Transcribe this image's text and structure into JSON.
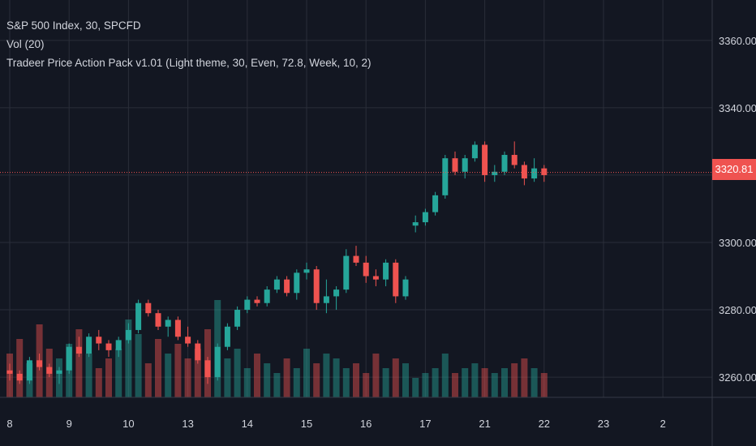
{
  "legend": {
    "line1": "S&P 500 Index, 30, SPCFD",
    "line2": "Vol (20)",
    "line3": "Tradeer Price Action Pack v1.01 (Light theme, 30, Even, 72.8, Week, 10, 2)"
  },
  "colors": {
    "background": "#131722",
    "grid": "#2a2e39",
    "up": "#26a69a",
    "down": "#ef5350",
    "text": "#d1d4dc",
    "price_line": "#ef5350"
  },
  "chart_data": {
    "type": "candlestick",
    "symbol": "S&P 500 Index",
    "interval": "30",
    "source": "SPCFD",
    "last_price": "3320.81",
    "y_ticks": [
      "3360.00",
      "3340.00",
      "3320.00",
      "3300.00",
      "3280.00",
      "3260.00"
    ],
    "y_tick_values": [
      3360,
      3340,
      3320,
      3300,
      3280,
      3260
    ],
    "ylim": [
      3254,
      3372
    ],
    "x_ticks": [
      "8",
      "9",
      "10",
      "13",
      "14",
      "15",
      "16",
      "17",
      "21",
      "22",
      "23",
      "2"
    ],
    "x_tick_index": [
      0,
      6,
      12,
      18,
      24,
      30,
      36,
      42,
      48,
      54,
      60,
      66
    ],
    "ohlc": [
      [
        3262,
        3264,
        3259,
        3261
      ],
      [
        3261,
        3262,
        3258,
        3259
      ],
      [
        3259,
        3266,
        3258,
        3265
      ],
      [
        3265,
        3267,
        3262,
        3263
      ],
      [
        3263,
        3264,
        3260,
        3261
      ],
      [
        3261,
        3263,
        3258,
        3262
      ],
      [
        3262,
        3270,
        3261,
        3269
      ],
      [
        3269,
        3272,
        3266,
        3267
      ],
      [
        3267,
        3273,
        3266,
        3272
      ],
      [
        3272,
        3274,
        3268,
        3270
      ],
      [
        3270,
        3271,
        3266,
        3268
      ],
      [
        3268,
        3272,
        3266,
        3271
      ],
      [
        3271,
        3276,
        3270,
        3274
      ],
      [
        3274,
        3283,
        3273,
        3282
      ],
      [
        3282,
        3283,
        3278,
        3279
      ],
      [
        3279,
        3280,
        3274,
        3275
      ],
      [
        3275,
        3278,
        3272,
        3277
      ],
      [
        3277,
        3278,
        3271,
        3272
      ],
      [
        3272,
        3275,
        3269,
        3270
      ],
      [
        3270,
        3271,
        3264,
        3265
      ],
      [
        3265,
        3266,
        3258,
        3260
      ],
      [
        3260,
        3270,
        3259,
        3269
      ],
      [
        3269,
        3276,
        3268,
        3275
      ],
      [
        3275,
        3281,
        3274,
        3280
      ],
      [
        3280,
        3284,
        3279,
        3283
      ],
      [
        3283,
        3284,
        3281,
        3282
      ],
      [
        3282,
        3287,
        3281,
        3286
      ],
      [
        3286,
        3290,
        3285,
        3289
      ],
      [
        3289,
        3290,
        3284,
        3285
      ],
      [
        3285,
        3292,
        3283,
        3291
      ],
      [
        3291,
        3294,
        3289,
        3292
      ],
      [
        3292,
        3293,
        3280,
        3282
      ],
      [
        3282,
        3289,
        3279,
        3284
      ],
      [
        3284,
        3287,
        3280,
        3286
      ],
      [
        3286,
        3298,
        3285,
        3296
      ],
      [
        3296,
        3299,
        3293,
        3294
      ],
      [
        3294,
        3296,
        3288,
        3290
      ],
      [
        3290,
        3292,
        3287,
        3289
      ],
      [
        3289,
        3295,
        3287,
        3294
      ],
      [
        3294,
        3295,
        3282,
        3284
      ],
      [
        3284,
        3290,
        3283,
        3289
      ],
      [
        3305,
        3308,
        3303,
        3306
      ],
      [
        3306,
        3310,
        3305,
        3309
      ],
      [
        3309,
        3315,
        3308,
        3314
      ],
      [
        3314,
        3326,
        3313,
        3325
      ],
      [
        3325,
        3327,
        3320,
        3321
      ],
      [
        3321,
        3326,
        3319,
        3325
      ],
      [
        3325,
        3330,
        3324,
        3329
      ],
      [
        3329,
        3330,
        3318,
        3320
      ],
      [
        3320,
        3323,
        3318,
        3321
      ],
      [
        3321,
        3327,
        3320,
        3326
      ],
      [
        3326,
        3330,
        3322,
        3323
      ],
      [
        3323,
        3324,
        3317,
        3319
      ],
      [
        3319,
        3325,
        3318,
        3322
      ],
      [
        3322,
        3323,
        3318,
        3320
      ]
    ],
    "volume": [
      9,
      12,
      7,
      15,
      10,
      8,
      11,
      14,
      9,
      6,
      8,
      10,
      16,
      13,
      7,
      12,
      9,
      11,
      8,
      10,
      14,
      20,
      8,
      10,
      6,
      9,
      7,
      5,
      8,
      6,
      10,
      7,
      9,
      8,
      6,
      7,
      5,
      9,
      6,
      8,
      7,
      4,
      5,
      6,
      9,
      5,
      6,
      7,
      6,
      5,
      6,
      7,
      8,
      6,
      5
    ]
  }
}
